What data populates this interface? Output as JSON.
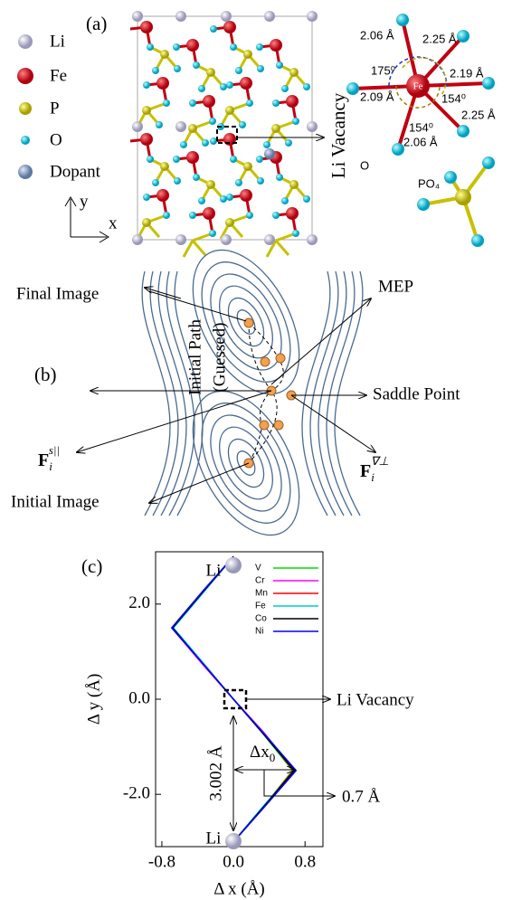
{
  "panel_a": {
    "label": "(a)",
    "legend": [
      "Li",
      "Fe",
      "P",
      "O",
      "Dopant"
    ],
    "axis_y": "y",
    "axis_x": "x",
    "vacancy_label": "Li Vacancy",
    "octahedron": {
      "center": "Fe",
      "labels": [
        "2.06 Å",
        "2.25 Å",
        "175⁰",
        "2.19 Å",
        "2.09 Å",
        "154⁰",
        "2.25 Å",
        "154⁰",
        "2.06 Å"
      ],
      "oxygen": "O",
      "tetrahedron": "PO₄"
    }
  },
  "panel_b": {
    "label": "(b)",
    "final_image": "Final Image",
    "mep": "MEP",
    "initial_path": [
      "Initial Path",
      "(Guessed)"
    ],
    "saddle_point": "Saddle Point",
    "force_parallel": {
      "base": "F",
      "sub": "i",
      "sup": "s||"
    },
    "force_perp": {
      "base": "F",
      "sub": "i",
      "sup": "∇⊥"
    },
    "initial_image": "Initial Image"
  },
  "chart_data": {
    "type": "line",
    "label": "(c)",
    "x_label": "Δ x (Å)",
    "y_label": "Δ y (Å)",
    "xlim": [
      -0.87,
      1.0
    ],
    "ylim": [
      -3.1,
      3.1
    ],
    "xticks": [
      -0.8,
      {
        "value": 0,
        "label": "0.0"
      },
      0.8
    ],
    "yticks": [
      {
        "value": 2,
        "label": "2.0"
      },
      {
        "value": 0,
        "label": "0.0"
      },
      {
        "value": -2,
        "label": "-2.0"
      }
    ],
    "series": [
      {
        "name": "V",
        "color": "#00dd00",
        "x": [
          0.0,
          -0.32,
          -0.68,
          -0.32,
          0.0,
          0.32,
          0.66,
          0.32,
          0.0
        ],
        "values": [
          3.0,
          2.3,
          1.5,
          0.7,
          0.0,
          -0.7,
          -1.5,
          -2.3,
          -3.0
        ]
      },
      {
        "name": "Cr",
        "color": "#ff00ff",
        "x": [
          0.0,
          -0.33,
          -0.69,
          -0.33,
          0.0,
          0.34,
          0.68,
          0.33,
          0.0
        ],
        "values": [
          3.0,
          2.3,
          1.5,
          0.7,
          0.0,
          -0.7,
          -1.5,
          -2.3,
          -3.0
        ]
      },
      {
        "name": "Mn",
        "color": "#ff0000",
        "x": [
          0.0,
          -0.32,
          -0.68,
          -0.31,
          0.0,
          0.33,
          0.67,
          0.32,
          0.0
        ],
        "values": [
          3.0,
          2.3,
          1.5,
          0.7,
          0.0,
          -0.7,
          -1.5,
          -2.3,
          -3.0
        ]
      },
      {
        "name": "Fe",
        "color": "#00cccc",
        "x": [
          0.0,
          -0.31,
          -0.67,
          -0.31,
          0.0,
          0.32,
          0.69,
          0.31,
          0.0
        ],
        "values": [
          3.0,
          2.3,
          1.5,
          0.7,
          0.0,
          -0.7,
          -1.5,
          -2.3,
          -3.0
        ]
      },
      {
        "name": "Co",
        "color": "#000000",
        "x": [
          0.0,
          -0.32,
          -0.68,
          -0.32,
          0.0,
          0.32,
          0.68,
          0.32,
          0.0
        ],
        "values": [
          3.0,
          2.3,
          1.5,
          0.7,
          0.0,
          -0.7,
          -1.5,
          -2.3,
          -3.0
        ]
      },
      {
        "name": "Ni",
        "color": "#0000ff",
        "x": [
          0.0,
          -0.33,
          -0.69,
          -0.32,
          0.0,
          0.33,
          0.7,
          0.33,
          0.0
        ],
        "values": [
          3.0,
          2.3,
          1.5,
          0.7,
          0.0,
          -0.7,
          -1.5,
          -2.3,
          -3.0
        ]
      }
    ],
    "annotations": {
      "li_top": "Li",
      "li_bottom": "Li",
      "vacancy": "Li Vacancy",
      "distance": "3.002 Å",
      "dx": {
        "base": "Δx",
        "sub": "0"
      },
      "dx_value": "0.7 Å"
    }
  }
}
